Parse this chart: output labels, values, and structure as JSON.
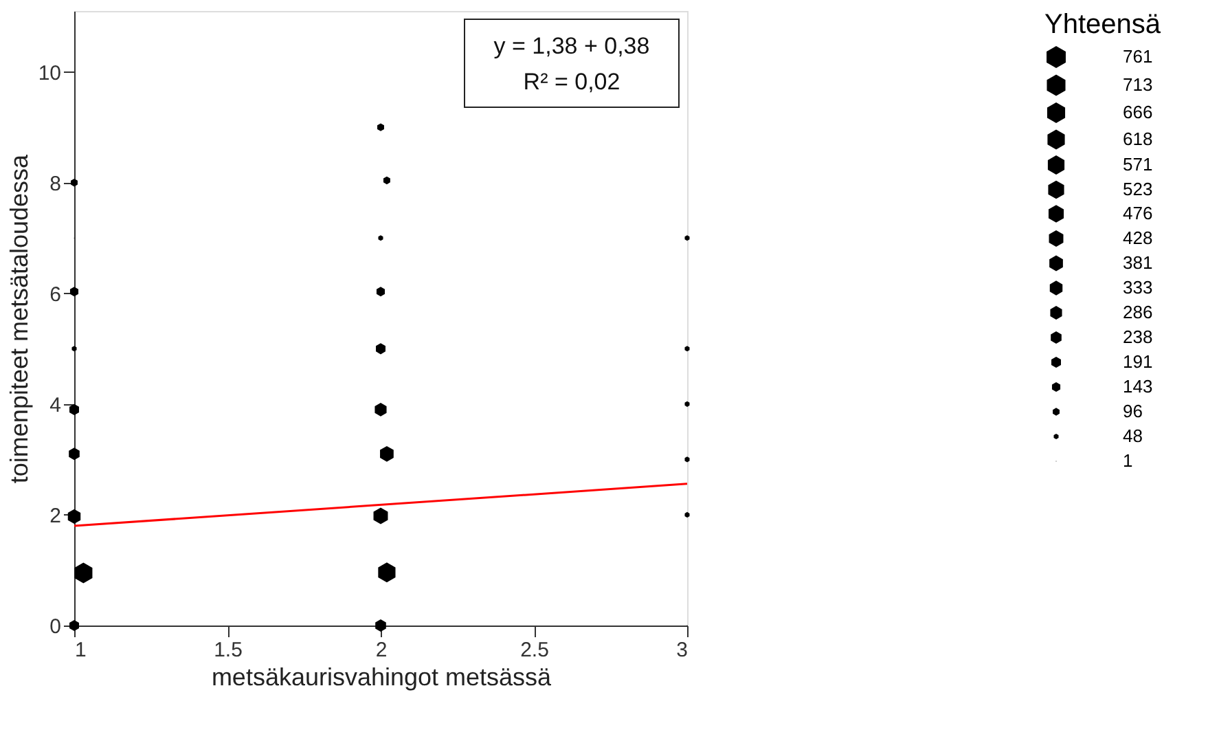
{
  "chart_data": {
    "type": "bubble",
    "xlabel": "metsäkaurisvahingot metsässä",
    "ylabel": "toimenpiteet metsätaloudessa",
    "legend_title": "Yhteensä",
    "xlim": [
      1,
      3
    ],
    "ylim": [
      0,
      11.1
    ],
    "xticks": [
      1,
      1.5,
      2,
      2.5,
      3
    ],
    "yticks": [
      0,
      2,
      4,
      6,
      8,
      10
    ],
    "size_legend": [
      761,
      713,
      666,
      618,
      571,
      523,
      476,
      428,
      381,
      333,
      286,
      238,
      191,
      143,
      96,
      48,
      1
    ],
    "grid": false,
    "annotations": [
      "y = 1,38 + 0,38",
      "R² = 0,02"
    ],
    "series": [
      {
        "color": "#000000",
        "x": [
          1,
          1.03,
          1,
          1,
          1,
          1,
          1,
          1,
          1,
          2,
          2.02,
          2,
          2.02,
          2,
          2,
          2,
          2,
          2.02,
          2,
          3,
          3,
          3,
          3,
          3,
          3
        ],
        "values": [
          0,
          0.95,
          1.97,
          3.1,
          3.9,
          5,
          6.03,
          7,
          8,
          0,
          0.96,
          1.98,
          3.1,
          3.9,
          5,
          6.03,
          7,
          8.04,
          9,
          0,
          2,
          3,
          4,
          5,
          7
        ],
        "sizes": [
          191,
          666,
          333,
          238,
          191,
          48,
          143,
          1,
          96,
          238,
          618,
          428,
          381,
          286,
          191,
          143,
          48,
          96,
          96,
          1,
          48,
          48,
          48,
          48,
          48
        ]
      },
      {
        "type": "line",
        "color": "#ff0000",
        "x": [
          1,
          3
        ],
        "values": [
          1.8,
          2.56
        ]
      }
    ]
  }
}
